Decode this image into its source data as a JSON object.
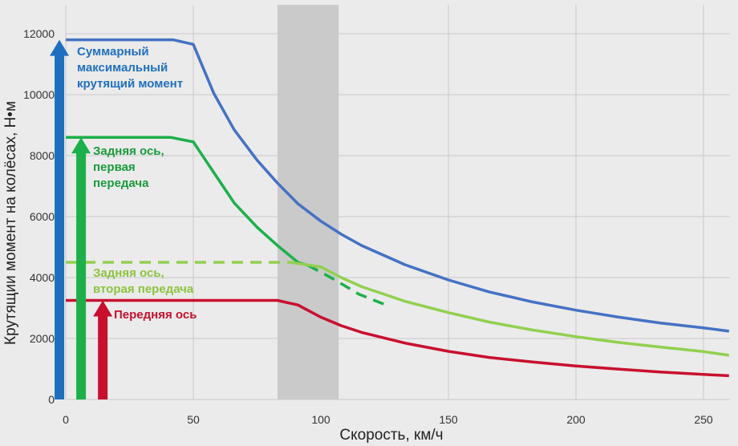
{
  "chart_data": {
    "type": "line",
    "title": "",
    "xlabel": "Скорость, км/ч",
    "ylabel": "Крутящии момент на колёсах, Н•м",
    "xlim": [
      0,
      260
    ],
    "ylim": [
      0,
      12500
    ],
    "x_ticks": [
      0,
      50,
      100,
      150,
      200,
      250
    ],
    "y_ticks": [
      0,
      2000,
      4000,
      6000,
      8000,
      10000,
      12000
    ],
    "grid": true,
    "highlight_band": {
      "x_from": 83,
      "x_to": 107
    },
    "series": [
      {
        "name": "Суммарный максимальный крутящий момент",
        "color": "#4472c4",
        "dashed": false,
        "points": [
          [
            0,
            11800
          ],
          [
            42,
            11800
          ],
          [
            50,
            11650
          ],
          [
            58,
            10050
          ],
          [
            66,
            8850
          ],
          [
            75,
            7850
          ],
          [
            83,
            7100
          ],
          [
            91,
            6420
          ],
          [
            100,
            5850
          ],
          [
            108,
            5420
          ],
          [
            116,
            5050
          ],
          [
            133,
            4420
          ],
          [
            150,
            3920
          ],
          [
            166,
            3530
          ],
          [
            183,
            3200
          ],
          [
            200,
            2930
          ],
          [
            216,
            2710
          ],
          [
            233,
            2510
          ],
          [
            250,
            2350
          ],
          [
            260,
            2240
          ]
        ]
      },
      {
        "name": "Задняя ось, первая передача",
        "color": "#1db04a",
        "dashed": false,
        "points": [
          [
            0,
            8600
          ],
          [
            41,
            8600
          ],
          [
            50,
            8450
          ],
          [
            58,
            7450
          ],
          [
            66,
            6450
          ],
          [
            75,
            5650
          ],
          [
            83,
            5050
          ],
          [
            91,
            4500
          ],
          [
            95,
            4400
          ]
        ]
      },
      {
        "name": "Задняя ось, первая передача",
        "color": "#1db04a",
        "dashed": true,
        "points": [
          [
            95,
            4400
          ],
          [
            105,
            3950
          ],
          [
            115,
            3450
          ],
          [
            127,
            3050
          ]
        ]
      },
      {
        "name": "Задняя ось, вторая передача",
        "color": "#92d050",
        "dashed": true,
        "points": [
          [
            0,
            4500
          ],
          [
            88,
            4500
          ]
        ]
      },
      {
        "name": "Задняя ось, вторая передача",
        "color": "#92d050",
        "dashed": false,
        "points": [
          [
            88,
            4500
          ],
          [
            100,
            4350
          ],
          [
            108,
            4000
          ],
          [
            116,
            3700
          ],
          [
            133,
            3220
          ],
          [
            150,
            2850
          ],
          [
            166,
            2540
          ],
          [
            183,
            2280
          ],
          [
            200,
            2060
          ],
          [
            216,
            1880
          ],
          [
            233,
            1720
          ],
          [
            250,
            1570
          ],
          [
            260,
            1450
          ]
        ]
      },
      {
        "name": "Передняя ось",
        "color": "#c8102e",
        "dashed": false,
        "points": [
          [
            0,
            3250
          ],
          [
            83,
            3250
          ],
          [
            91,
            3100
          ],
          [
            100,
            2700
          ],
          [
            108,
            2420
          ],
          [
            116,
            2200
          ],
          [
            133,
            1850
          ],
          [
            150,
            1580
          ],
          [
            166,
            1380
          ],
          [
            183,
            1230
          ],
          [
            200,
            1100
          ],
          [
            216,
            1000
          ],
          [
            233,
            900
          ],
          [
            250,
            820
          ],
          [
            260,
            780
          ]
        ]
      }
    ],
    "annotations": [
      {
        "lines": [
          "Суммарный",
          "максимальный",
          "крутящий момент"
        ],
        "color": "#1f6fbf",
        "arrow_color": "#1f6fbf",
        "arrow_x": -2.5,
        "arrow_top": 11800
      },
      {
        "lines": [
          "Задняя ось,",
          "первая",
          "передача"
        ],
        "color": "#1a9a3e",
        "arrow_color": "#1db04a",
        "arrow_x": 6,
        "arrow_top": 8600
      },
      {
        "lines": [
          "Задняя ось,",
          "вторая передача"
        ],
        "color": "#8cc43e",
        "arrow_color": null,
        "arrow_x": null,
        "arrow_top": null
      },
      {
        "lines": [
          "Передняя ось"
        ],
        "color": "#c8102e",
        "arrow_color": "#c8102e",
        "arrow_x": 14.5,
        "arrow_top": 3250
      }
    ]
  }
}
